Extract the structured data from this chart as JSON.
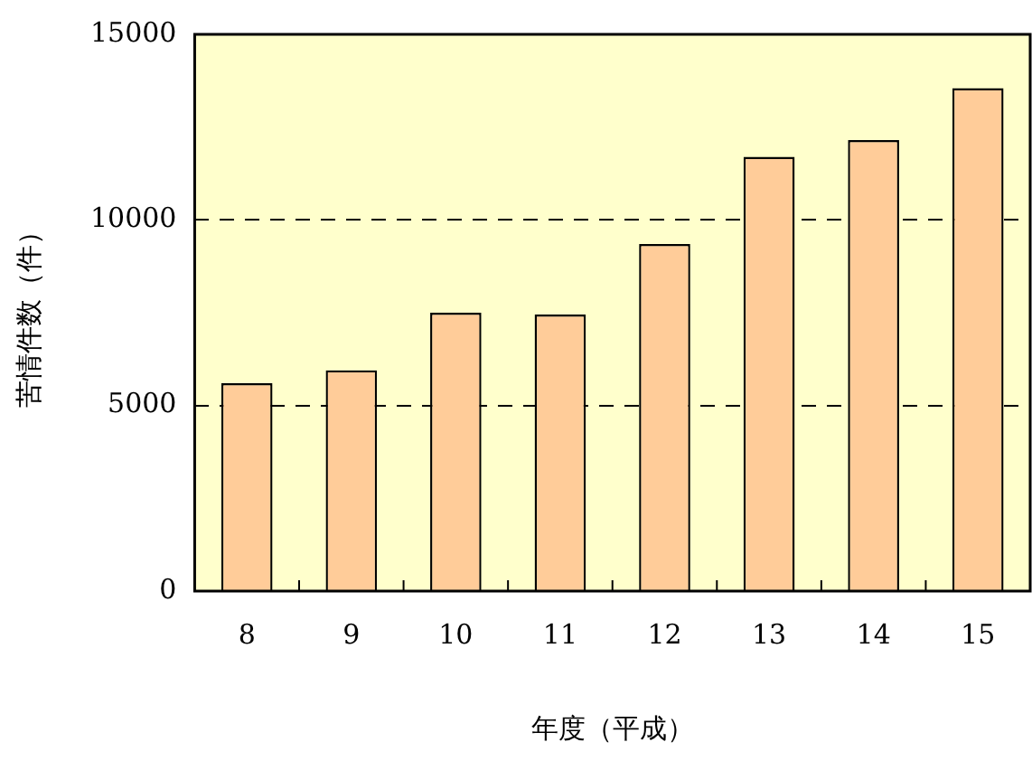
{
  "chart_data": {
    "type": "bar",
    "xlabel": "年度（平成）",
    "ylabel": "苦情件数（件）",
    "categories": [
      "8",
      "9",
      "10",
      "11",
      "12",
      "13",
      "14",
      "15"
    ],
    "values": [
      5600,
      5950,
      7500,
      7450,
      9350,
      11700,
      12150,
      13550
    ],
    "color": "#ffcc99",
    "ylim": [
      0,
      15000
    ],
    "yticks": [
      0,
      5000,
      10000,
      15000
    ],
    "grid": "y",
    "legend": false
  }
}
